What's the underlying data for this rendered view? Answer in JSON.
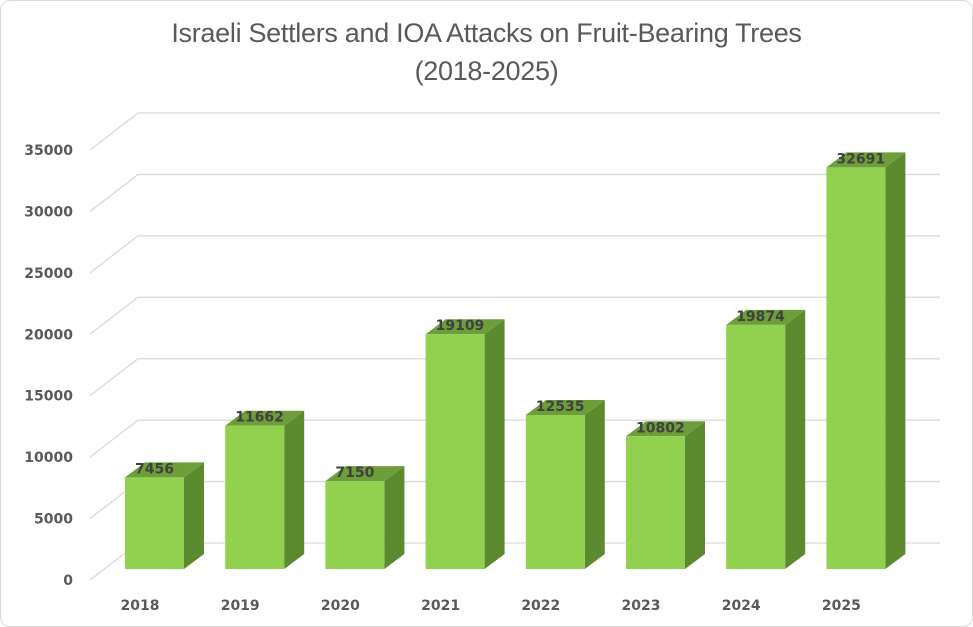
{
  "chart_data": {
    "type": "bar",
    "style": "3d-column",
    "title": "Israeli Settlers and IOA Attacks on Fruit-Bearing Trees",
    "subtitle": "(2018-2025)",
    "xlabel": "",
    "ylabel": "",
    "categories": [
      "2018",
      "2019",
      "2020",
      "2021",
      "2022",
      "2023",
      "2024",
      "2025"
    ],
    "values": [
      7456,
      11662,
      7150,
      19109,
      12535,
      10802,
      19874,
      32691
    ],
    "data_labels": [
      "7456",
      "11662",
      "7150",
      "19109",
      "12535",
      "10802",
      "19874",
      "32691"
    ],
    "yticks": [
      0,
      5000,
      10000,
      15000,
      20000,
      25000,
      30000,
      35000
    ],
    "ytick_labels": [
      "0",
      "5000",
      "10000",
      "15000",
      "20000",
      "25000",
      "30000",
      "35000"
    ],
    "ylim": [
      0,
      35000
    ],
    "grid": true,
    "legend": "none",
    "colors": {
      "bar_front": "#92d050",
      "bar_top": "#6d9e3a",
      "bar_side": "#5c8a2e",
      "grid": "#d9d9d9",
      "text": "#595959",
      "label": "#404040"
    }
  }
}
